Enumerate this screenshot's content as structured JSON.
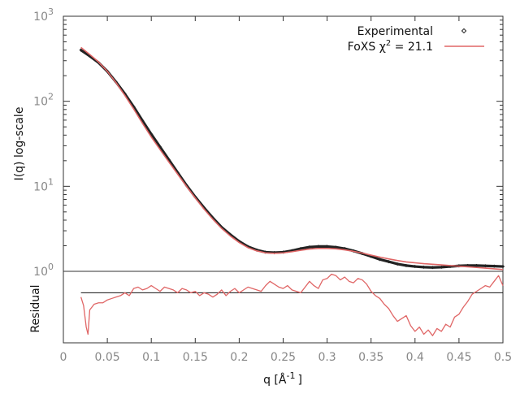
{
  "chart_data": {
    "type": "line",
    "xlabel": "q [Å",
    "xlabel_sup": "-1",
    "xlabel_close": "]",
    "x_range": [
      0,
      0.5
    ],
    "x_ticks": [
      "0",
      "0.05",
      "0.1",
      "0.15",
      "0.2",
      "0.25",
      "0.3",
      "0.35",
      "0.4",
      "0.45",
      "0.5"
    ],
    "upper": {
      "ylabel": "I(q) log-scale",
      "scale": "log",
      "ylim": [
        1,
        1000
      ],
      "y_ticks": [
        {
          "base": "10",
          "exp": "3",
          "value": 1000
        },
        {
          "base": "10",
          "exp": "2",
          "value": 100
        },
        {
          "base": "10",
          "exp": "1",
          "value": 10
        },
        {
          "base": "10",
          "exp": "0",
          "value": 1
        }
      ],
      "legend": {
        "placement": "top-right",
        "entries": [
          {
            "label": "Experimental",
            "style": "points",
            "color": "#222222"
          },
          {
            "label": "FoXS χ",
            "sup": "2",
            "suffix": " = 21.1",
            "style": "line",
            "color": "#e06666"
          }
        ]
      },
      "series": [
        {
          "name": "Experimental",
          "color": "#222222",
          "x": [
            0.02,
            0.03,
            0.04,
            0.05,
            0.06,
            0.07,
            0.08,
            0.09,
            0.1,
            0.11,
            0.12,
            0.13,
            0.14,
            0.15,
            0.16,
            0.17,
            0.18,
            0.19,
            0.2,
            0.21,
            0.22,
            0.23,
            0.24,
            0.25,
            0.26,
            0.27,
            0.28,
            0.29,
            0.3,
            0.31,
            0.32,
            0.33,
            0.34,
            0.35,
            0.36,
            0.37,
            0.38,
            0.39,
            0.4,
            0.41,
            0.42,
            0.43,
            0.44,
            0.45,
            0.46,
            0.47,
            0.48,
            0.49,
            0.5
          ],
          "y": [
            400,
            340,
            285,
            225,
            168,
            122,
            86,
            59,
            41,
            29,
            20.5,
            14.5,
            10.3,
            7.5,
            5.6,
            4.25,
            3.3,
            2.7,
            2.25,
            1.95,
            1.78,
            1.68,
            1.66,
            1.68,
            1.75,
            1.85,
            1.93,
            1.96,
            1.96,
            1.92,
            1.85,
            1.74,
            1.62,
            1.5,
            1.38,
            1.3,
            1.22,
            1.17,
            1.14,
            1.12,
            1.11,
            1.12,
            1.14,
            1.16,
            1.17,
            1.17,
            1.16,
            1.15,
            1.14
          ]
        },
        {
          "name": "FoXS",
          "color": "#e06666",
          "x": [
            0.02,
            0.03,
            0.04,
            0.05,
            0.06,
            0.07,
            0.08,
            0.09,
            0.1,
            0.11,
            0.12,
            0.13,
            0.14,
            0.15,
            0.16,
            0.17,
            0.18,
            0.19,
            0.2,
            0.21,
            0.22,
            0.23,
            0.24,
            0.25,
            0.26,
            0.27,
            0.28,
            0.29,
            0.3,
            0.31,
            0.32,
            0.33,
            0.34,
            0.35,
            0.36,
            0.37,
            0.38,
            0.39,
            0.4,
            0.41,
            0.42,
            0.43,
            0.44,
            0.45,
            0.46,
            0.47,
            0.48,
            0.49,
            0.5
          ],
          "y": [
            430,
            355,
            290,
            225,
            165,
            117,
            81,
            55,
            38,
            27,
            19.3,
            13.9,
            10.0,
            7.3,
            5.4,
            4.1,
            3.2,
            2.6,
            2.18,
            1.9,
            1.74,
            1.65,
            1.63,
            1.65,
            1.7,
            1.77,
            1.83,
            1.86,
            1.86,
            1.84,
            1.79,
            1.72,
            1.64,
            1.55,
            1.47,
            1.4,
            1.34,
            1.29,
            1.26,
            1.23,
            1.21,
            1.19,
            1.17,
            1.15,
            1.13,
            1.11,
            1.09,
            1.07,
            1.05
          ]
        }
      ]
    },
    "lower": {
      "ylabel": "Residual",
      "reference_line": 0,
      "ylim": [
        -3.5,
        1.5
      ],
      "series": [
        {
          "name": "Residual",
          "color": "#e06666",
          "x": [
            0.02,
            0.023,
            0.026,
            0.028,
            0.03,
            0.035,
            0.04,
            0.045,
            0.05,
            0.055,
            0.06,
            0.065,
            0.07,
            0.075,
            0.08,
            0.085,
            0.09,
            0.095,
            0.1,
            0.105,
            0.11,
            0.115,
            0.12,
            0.125,
            0.13,
            0.135,
            0.14,
            0.145,
            0.15,
            0.155,
            0.16,
            0.165,
            0.17,
            0.175,
            0.18,
            0.185,
            0.19,
            0.195,
            0.2,
            0.205,
            0.21,
            0.215,
            0.22,
            0.225,
            0.23,
            0.235,
            0.24,
            0.245,
            0.25,
            0.255,
            0.26,
            0.265,
            0.27,
            0.275,
            0.28,
            0.285,
            0.29,
            0.295,
            0.3,
            0.305,
            0.31,
            0.315,
            0.32,
            0.325,
            0.33,
            0.335,
            0.34,
            0.345,
            0.35,
            0.355,
            0.36,
            0.365,
            0.37,
            0.375,
            0.38,
            0.385,
            0.39,
            0.395,
            0.4,
            0.405,
            0.41,
            0.415,
            0.42,
            0.425,
            0.43,
            0.435,
            0.44,
            0.445,
            0.45,
            0.455,
            0.46,
            0.465,
            0.47,
            0.475,
            0.48,
            0.485,
            0.49,
            0.495,
            0.5
          ],
          "y": [
            -0.3,
            -0.9,
            -2.4,
            -2.9,
            -1.2,
            -0.8,
            -0.7,
            -0.7,
            -0.5,
            -0.4,
            -0.3,
            -0.2,
            0.0,
            -0.2,
            0.3,
            0.4,
            0.2,
            0.3,
            0.5,
            0.3,
            0.1,
            0.4,
            0.3,
            0.2,
            0.0,
            0.3,
            0.2,
            0.0,
            0.1,
            -0.2,
            0.0,
            -0.1,
            -0.3,
            -0.1,
            0.2,
            -0.2,
            0.1,
            0.3,
            0.0,
            0.2,
            0.4,
            0.3,
            0.2,
            0.1,
            0.5,
            0.8,
            0.6,
            0.4,
            0.3,
            0.5,
            0.2,
            0.1,
            0.0,
            0.4,
            0.8,
            0.5,
            0.3,
            0.9,
            1.0,
            1.3,
            1.2,
            0.9,
            1.1,
            0.8,
            0.7,
            1.0,
            0.9,
            0.6,
            0.1,
            -0.2,
            -0.4,
            -0.8,
            -1.1,
            -1.6,
            -2.0,
            -1.8,
            -1.6,
            -2.3,
            -2.7,
            -2.4,
            -2.9,
            -2.6,
            -3.0,
            -2.5,
            -2.7,
            -2.2,
            -2.4,
            -1.7,
            -1.5,
            -1.0,
            -0.6,
            -0.1,
            0.1,
            0.3,
            0.5,
            0.4,
            0.8,
            1.2,
            0.5
          ]
        }
      ]
    }
  }
}
